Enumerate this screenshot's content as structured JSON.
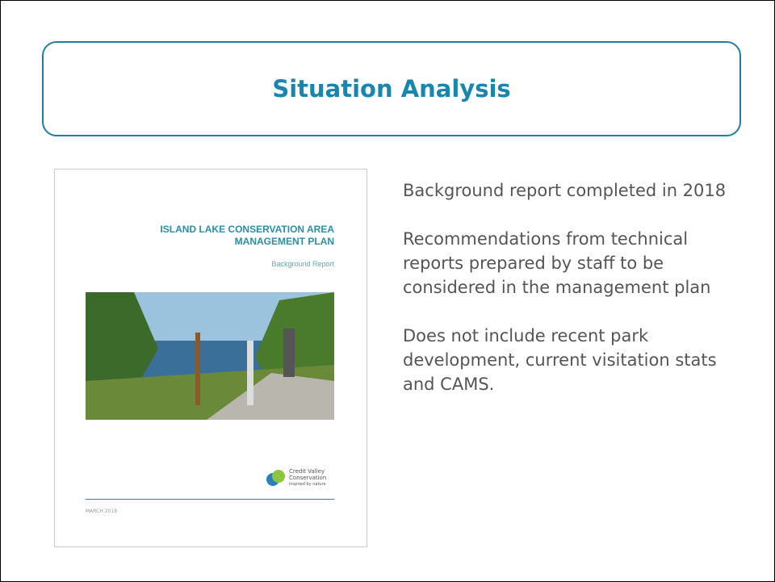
{
  "header": {
    "title": "Situation Analysis"
  },
  "cover": {
    "title_line1": "ISLAND LAKE CONSERVATION AREA",
    "title_line2": "MANAGEMENT PLAN",
    "subtitle": "Background Report",
    "logo_line1": "Credit Valley",
    "logo_line2": "Conservation",
    "logo_tagline": "inspired by nature",
    "date": "MARCH 2018"
  },
  "bullets": [
    "Background report completed in 2018",
    "Recommendations from technical reports prepared by staff to be considered in the management plan",
    "Does not include recent park development, current visitation stats and CAMS."
  ]
}
